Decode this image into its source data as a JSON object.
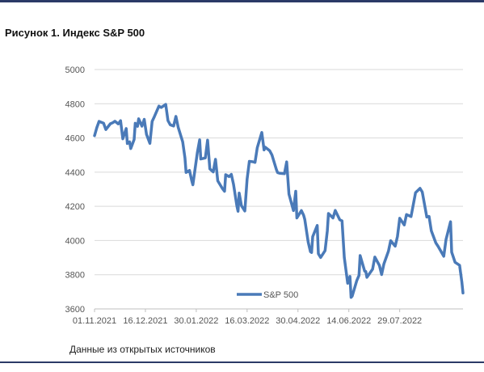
{
  "page": {
    "title": "Рисунок 1. Индекс S&P 500",
    "source": "Данные из открытых источников"
  },
  "colors": {
    "series": "#4a7ab8",
    "grid": "#d9d9d9",
    "axis": "#bfbfbf",
    "rule": "#2b3a67"
  },
  "chart_data": {
    "type": "line",
    "ylim": [
      3600,
      5000
    ],
    "yticks": [
      3600,
      3800,
      4000,
      4200,
      4400,
      4600,
      4800,
      5000
    ],
    "xlim": [
      "01.11.2021",
      "23.09.2022"
    ],
    "xticks": [
      "01.11.2021",
      "16.12.2021",
      "30.01.2022",
      "16.03.2022",
      "30.04.2022",
      "14.06.2022",
      "29.07.2022"
    ],
    "grid": true,
    "legend": "bottom-center",
    "series": [
      {
        "name": "S&P 500",
        "points": [
          [
            "01.11.2021",
            4613
          ],
          [
            "03.11.2021",
            4660
          ],
          [
            "05.11.2021",
            4697
          ],
          [
            "09.11.2021",
            4686
          ],
          [
            "11.11.2021",
            4649
          ],
          [
            "15.11.2021",
            4683
          ],
          [
            "17.11.2021",
            4689
          ],
          [
            "19.11.2021",
            4698
          ],
          [
            "22.11.2021",
            4682
          ],
          [
            "24.11.2021",
            4701
          ],
          [
            "26.11.2021",
            4595
          ],
          [
            "29.11.2021",
            4655
          ],
          [
            "30.11.2021",
            4567
          ],
          [
            "02.12.2021",
            4577
          ],
          [
            "03.12.2021",
            4538
          ],
          [
            "06.12.2021",
            4591
          ],
          [
            "07.12.2021",
            4686
          ],
          [
            "09.12.2021",
            4668
          ],
          [
            "10.12.2021",
            4712
          ],
          [
            "13.12.2021",
            4669
          ],
          [
            "15.12.2021",
            4709
          ],
          [
            "17.12.2021",
            4621
          ],
          [
            "20.12.2021",
            4568
          ],
          [
            "22.12.2021",
            4697
          ],
          [
            "24.12.2021",
            4725
          ],
          [
            "28.12.2021",
            4786
          ],
          [
            "30.12.2021",
            4778
          ],
          [
            "03.01.2022",
            4796
          ],
          [
            "05.01.2022",
            4701
          ],
          [
            "07.01.2022",
            4677
          ],
          [
            "10.01.2022",
            4670
          ],
          [
            "12.01.2022",
            4726
          ],
          [
            "14.01.2022",
            4663
          ],
          [
            "18.01.2022",
            4577
          ],
          [
            "20.01.2022",
            4483
          ],
          [
            "21.01.2022",
            4398
          ],
          [
            "24.01.2022",
            4410
          ],
          [
            "26.01.2022",
            4350
          ],
          [
            "27.01.2022",
            4326
          ],
          [
            "31.01.2022",
            4516
          ],
          [
            "02.02.2022",
            4589
          ],
          [
            "03.02.2022",
            4477
          ],
          [
            "07.02.2022",
            4483
          ],
          [
            "09.02.2022",
            4587
          ],
          [
            "11.02.2022",
            4419
          ],
          [
            "14.02.2022",
            4401
          ],
          [
            "16.02.2022",
            4475
          ],
          [
            "18.02.2022",
            4349
          ],
          [
            "22.02.2022",
            4305
          ],
          [
            "24.02.2022",
            4288
          ],
          [
            "25.02.2022",
            4385
          ],
          [
            "28.02.2022",
            4374
          ],
          [
            "02.03.2022",
            4387
          ],
          [
            "04.03.2022",
            4329
          ],
          [
            "07.03.2022",
            4201
          ],
          [
            "08.03.2022",
            4171
          ],
          [
            "09.03.2022",
            4278
          ],
          [
            "11.03.2022",
            4204
          ],
          [
            "14.03.2022",
            4173
          ],
          [
            "16.03.2022",
            4358
          ],
          [
            "18.03.2022",
            4463
          ],
          [
            "21.03.2022",
            4461
          ],
          [
            "23.03.2022",
            4457
          ],
          [
            "25.03.2022",
            4543
          ],
          [
            "29.03.2022",
            4632
          ],
          [
            "31.03.2022",
            4530
          ],
          [
            "01.04.2022",
            4546
          ],
          [
            "05.04.2022",
            4525
          ],
          [
            "07.04.2022",
            4500
          ],
          [
            "11.04.2022",
            4413
          ],
          [
            "12.04.2022",
            4397
          ],
          [
            "14.04.2022",
            4393
          ],
          [
            "18.04.2022",
            4391
          ],
          [
            "20.04.2022",
            4460
          ],
          [
            "22.04.2022",
            4272
          ],
          [
            "26.04.2022",
            4175
          ],
          [
            "28.04.2022",
            4288
          ],
          [
            "29.04.2022",
            4132
          ],
          [
            "03.05.2022",
            4175
          ],
          [
            "05.05.2022",
            4147
          ],
          [
            "06.05.2022",
            4123
          ],
          [
            "09.05.2022",
            3991
          ],
          [
            "11.05.2022",
            3935
          ],
          [
            "12.05.2022",
            3930
          ],
          [
            "13.05.2022",
            4023
          ],
          [
            "17.05.2022",
            4088
          ],
          [
            "18.05.2022",
            3923
          ],
          [
            "20.05.2022",
            3901
          ],
          [
            "24.05.2022",
            3941
          ],
          [
            "26.05.2022",
            4057
          ],
          [
            "27.05.2022",
            4158
          ],
          [
            "31.05.2022",
            4132
          ],
          [
            "02.06.2022",
            4176
          ],
          [
            "06.06.2022",
            4121
          ],
          [
            "08.06.2022",
            4115
          ],
          [
            "10.06.2022",
            3901
          ],
          [
            "13.06.2022",
            3750
          ],
          [
            "15.06.2022",
            3790
          ],
          [
            "16.06.2022",
            3667
          ],
          [
            "17.06.2022",
            3675
          ],
          [
            "21.06.2022",
            3765
          ],
          [
            "23.06.2022",
            3796
          ],
          [
            "24.06.2022",
            3912
          ],
          [
            "28.06.2022",
            3821
          ],
          [
            "29.06.2022",
            3819
          ],
          [
            "30.06.2022",
            3785
          ],
          [
            "05.07.2022",
            3832
          ],
          [
            "07.07.2022",
            3903
          ],
          [
            "11.07.2022",
            3855
          ],
          [
            "13.07.2022",
            3801
          ],
          [
            "15.07.2022",
            3863
          ],
          [
            "19.07.2022",
            3937
          ],
          [
            "21.07.2022",
            3999
          ],
          [
            "25.07.2022",
            3967
          ],
          [
            "27.07.2022",
            4024
          ],
          [
            "29.07.2022",
            4130
          ],
          [
            "02.08.2022",
            4091
          ],
          [
            "04.08.2022",
            4152
          ],
          [
            "08.08.2022",
            4140
          ],
          [
            "10.08.2022",
            4210
          ],
          [
            "12.08.2022",
            4280
          ],
          [
            "16.08.2022",
            4305
          ],
          [
            "18.08.2022",
            4284
          ],
          [
            "22.08.2022",
            4138
          ],
          [
            "24.08.2022",
            4141
          ],
          [
            "26.08.2022",
            4057
          ],
          [
            "30.08.2022",
            3986
          ],
          [
            "01.09.2022",
            3966
          ],
          [
            "06.09.2022",
            3908
          ],
          [
            "08.09.2022",
            4006
          ],
          [
            "12.09.2022",
            4110
          ],
          [
            "13.09.2022",
            3932
          ],
          [
            "16.09.2022",
            3873
          ],
          [
            "20.09.2022",
            3855
          ],
          [
            "22.09.2022",
            3757
          ],
          [
            "23.09.2022",
            3693
          ]
        ]
      }
    ]
  }
}
